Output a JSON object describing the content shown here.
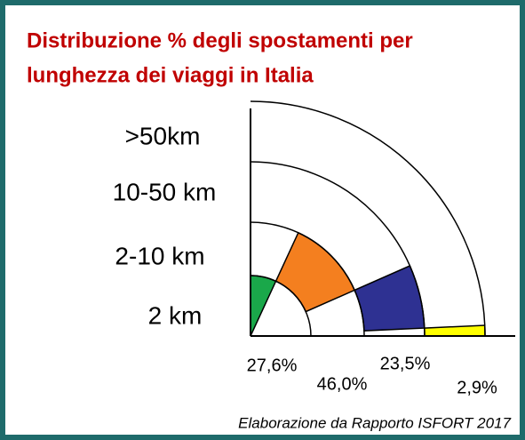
{
  "chart_data": {
    "type": "radial",
    "title": [
      "Distribuzione % degli spostamenti per",
      "lunghezza dei viaggi in Italia"
    ],
    "categories": [
      "2 km",
      "2-10 km",
      "10-50 km",
      ">50km"
    ],
    "values": [
      27.6,
      46.0,
      23.5,
      2.9
    ],
    "value_labels": [
      "27,6%",
      "46,0%",
      "23,5%",
      "2,9%"
    ],
    "colors": [
      "#1aa84a",
      "#f47f1f",
      "#2e3192",
      "#ffff00"
    ],
    "note": "Elaborazione da Rapporto ISFORT 2017"
  }
}
